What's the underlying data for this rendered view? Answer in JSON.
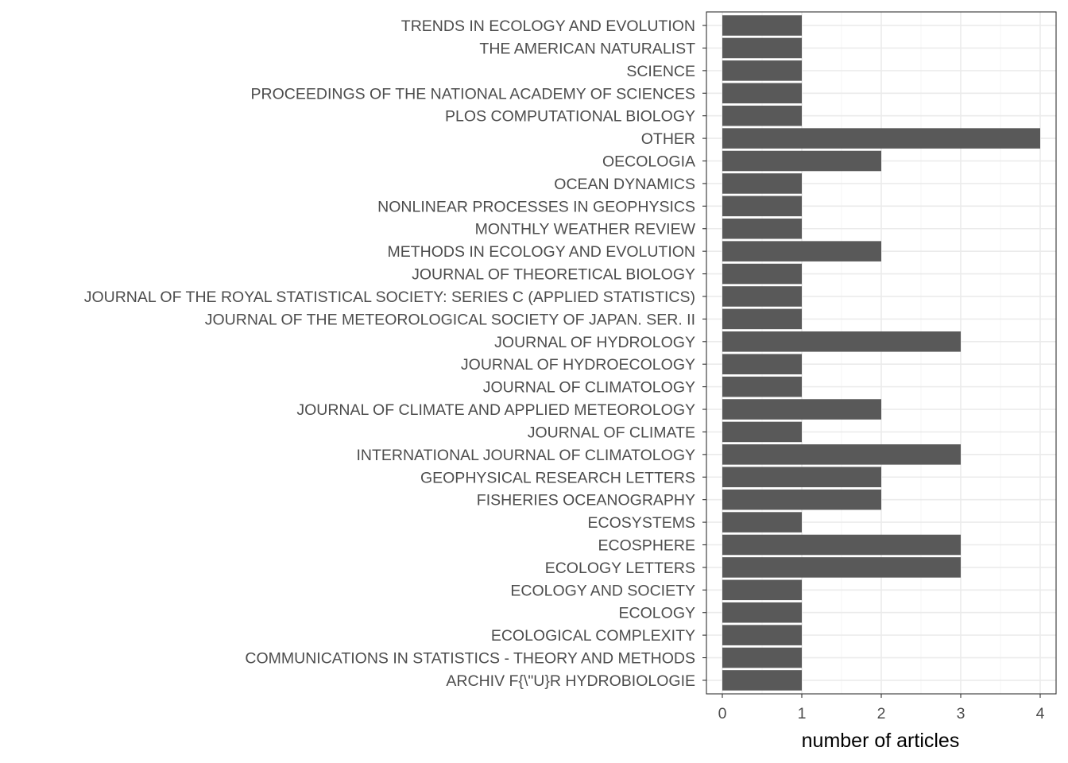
{
  "chart_data": {
    "type": "bar",
    "orientation": "horizontal",
    "categories": [
      "ARCHIV F{\\\"U}R HYDROBIOLOGIE",
      "COMMUNICATIONS IN STATISTICS - THEORY AND METHODS",
      "ECOLOGICAL COMPLEXITY",
      "ECOLOGY",
      "ECOLOGY AND SOCIETY",
      "ECOLOGY LETTERS",
      "ECOSPHERE",
      "ECOSYSTEMS",
      "FISHERIES OCEANOGRAPHY",
      "GEOPHYSICAL RESEARCH LETTERS",
      "INTERNATIONAL JOURNAL OF CLIMATOLOGY",
      "JOURNAL OF CLIMATE",
      "JOURNAL OF CLIMATE AND APPLIED METEOROLOGY",
      "JOURNAL OF CLIMATOLOGY",
      "JOURNAL OF HYDROECOLOGY",
      "JOURNAL OF HYDROLOGY",
      "JOURNAL OF THE METEOROLOGICAL SOCIETY OF JAPAN. SER. II",
      "JOURNAL OF THE ROYAL STATISTICAL SOCIETY: SERIES C (APPLIED STATISTICS)",
      "JOURNAL OF THEORETICAL BIOLOGY",
      "METHODS IN ECOLOGY AND EVOLUTION",
      "MONTHLY WEATHER REVIEW",
      "NONLINEAR PROCESSES IN GEOPHYSICS",
      "OCEAN DYNAMICS",
      "OECOLOGIA",
      "OTHER",
      "PLOS COMPUTATIONAL BIOLOGY",
      "PROCEEDINGS OF THE NATIONAL ACADEMY OF SCIENCES",
      "SCIENCE",
      "THE AMERICAN NATURALIST",
      "TRENDS IN ECOLOGY AND EVOLUTION"
    ],
    "values": [
      1,
      1,
      1,
      1,
      1,
      3,
      3,
      1,
      2,
      2,
      3,
      1,
      2,
      1,
      1,
      3,
      1,
      1,
      1,
      2,
      1,
      1,
      1,
      2,
      4,
      1,
      1,
      1,
      1,
      1
    ],
    "title": "",
    "xlabel": "number of articles",
    "ylabel": "",
    "xlim": [
      -0.2,
      4.2
    ],
    "x_ticks": [
      "0",
      "1",
      "2",
      "3",
      "4"
    ],
    "grid": true,
    "colors": {
      "bar": "#595959",
      "grid_major": "#ebebeb",
      "grid_minor": "#f5f5f5",
      "border": "#333333",
      "tick_text": "#4d4d4d",
      "axis_title": "#000000"
    }
  }
}
